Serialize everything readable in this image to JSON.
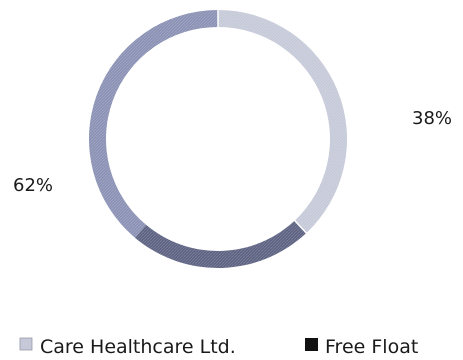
{
  "chart_data": {
    "type": "pie",
    "title": "",
    "categories": [
      "Care Healthcare Ltd.",
      "Free Float"
    ],
    "values": [
      38,
      62
    ],
    "data_labels": [
      "38%",
      "62%"
    ],
    "legend_position": "bottom",
    "colors": {
      "slice_light": "#c6c9d8",
      "slice_medium": "#8a91b4",
      "slice_dark": "#5d6282"
    },
    "legend": [
      {
        "label": "Care Healthcare Ltd.",
        "marker": "light-square"
      },
      {
        "label": "Free Float",
        "marker": "dark-square"
      }
    ]
  }
}
